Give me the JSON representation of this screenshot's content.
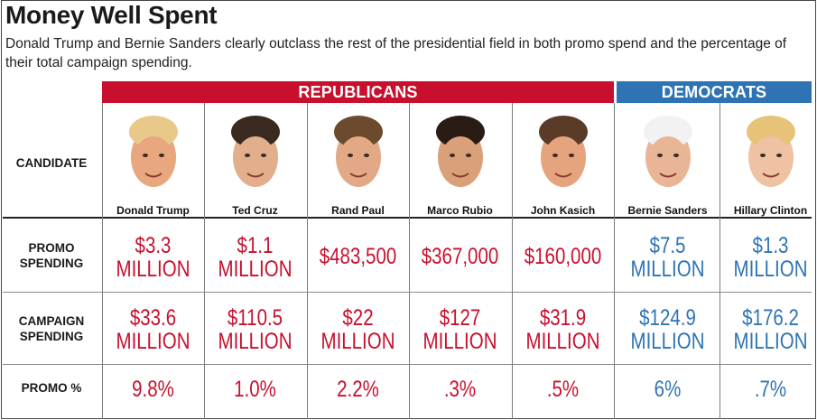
{
  "title": "Money Well Spent",
  "subtitle": "Donald Trump and Bernie Sanders clearly outclass the rest of the presidential field in both promo spend and the percentage of their total campaign spending.",
  "groups": {
    "republicans": "REPUBLICANS",
    "democrats": "DEMOCRATS"
  },
  "row_labels": {
    "candidate": "CANDIDATE",
    "promo_1": "PROMO",
    "promo_2": "SPENDING",
    "campaign_1": "CAMPAIGN",
    "campaign_2": "SPENDING",
    "percent": "PROMO %"
  },
  "colors": {
    "republican": "#c8102e",
    "democrat": "#2e74b5"
  },
  "chart_data": {
    "type": "table",
    "title": "Money Well Spent",
    "columns": [
      "Donald Trump",
      "Ted Cruz",
      "Rand Paul",
      "Marco Rubio",
      "John Kasich",
      "Bernie Sanders",
      "Hillary Clinton"
    ],
    "party": [
      "REPUBLICANS",
      "REPUBLICANS",
      "REPUBLICANS",
      "REPUBLICANS",
      "REPUBLICANS",
      "DEMOCRATS",
      "DEMOCRATS"
    ],
    "rows": [
      {
        "label": "PROMO SPENDING",
        "values": [
          "$3.3 MILLION",
          "$1.1 MILLION",
          "$483,500",
          "$367,000",
          "$160,000",
          "$7.5 MILLION",
          "$1.3 MILLION"
        ]
      },
      {
        "label": "CAMPAIGN SPENDING",
        "values": [
          "$33.6 MILLION",
          "$110.5 MILLION",
          "$22 MILLION",
          "$127 MILLION",
          "$31.9 MILLION",
          "$124.9 MILLION",
          "$176.2 MILLION"
        ]
      },
      {
        "label": "PROMO %",
        "values": [
          "9.8%",
          "1.0%",
          "2.2%",
          ".3%",
          ".5%",
          "6%",
          ".7%"
        ]
      }
    ]
  },
  "candidates": [
    {
      "name": "Donald Trump",
      "party": "rep",
      "promo_a": "$3.3",
      "promo_b": "MILLION",
      "camp_a": "$33.6",
      "camp_b": "MILLION",
      "pct": "9.8%",
      "hair": "#e9c98a",
      "skin": "#e8a77e"
    },
    {
      "name": "Ted Cruz",
      "party": "rep",
      "promo_a": "$1.1",
      "promo_b": "MILLION",
      "camp_a": "$110.5",
      "camp_b": "MILLION",
      "pct": "1.0%",
      "hair": "#3a2a20",
      "skin": "#e2ae8c"
    },
    {
      "name": "Rand Paul",
      "party": "rep",
      "promo_a": "$483,500",
      "promo_b": "",
      "camp_a": "$22",
      "camp_b": "MILLION",
      "pct": "2.2%",
      "hair": "#6b4a2e",
      "skin": "#e3a987"
    },
    {
      "name": "Marco Rubio",
      "party": "rep",
      "promo_a": "$367,000",
      "promo_b": "",
      "camp_a": "$127",
      "camp_b": "MILLION",
      "pct": ".3%",
      "hair": "#2a1c14",
      "skin": "#d9a07a"
    },
    {
      "name": "John Kasich",
      "party": "rep",
      "promo_a": "$160,000",
      "promo_b": "",
      "camp_a": "$31.9",
      "camp_b": "MILLION",
      "pct": ".5%",
      "hair": "#5a3b28",
      "skin": "#e6a47e"
    },
    {
      "name": "Bernie Sanders",
      "party": "dem",
      "promo_a": "$7.5",
      "promo_b": "MILLION",
      "camp_a": "$124.9",
      "camp_b": "MILLION",
      "pct": "6%",
      "hair": "#f2f2f2",
      "skin": "#e9b597"
    },
    {
      "name": "Hillary Clinton",
      "party": "dem",
      "promo_a": "$1.3",
      "promo_b": "MILLION",
      "camp_a": "$176.2",
      "camp_b": "MILLION",
      "pct": ".7%",
      "hair": "#e7c37a",
      "skin": "#efc2a4"
    }
  ]
}
